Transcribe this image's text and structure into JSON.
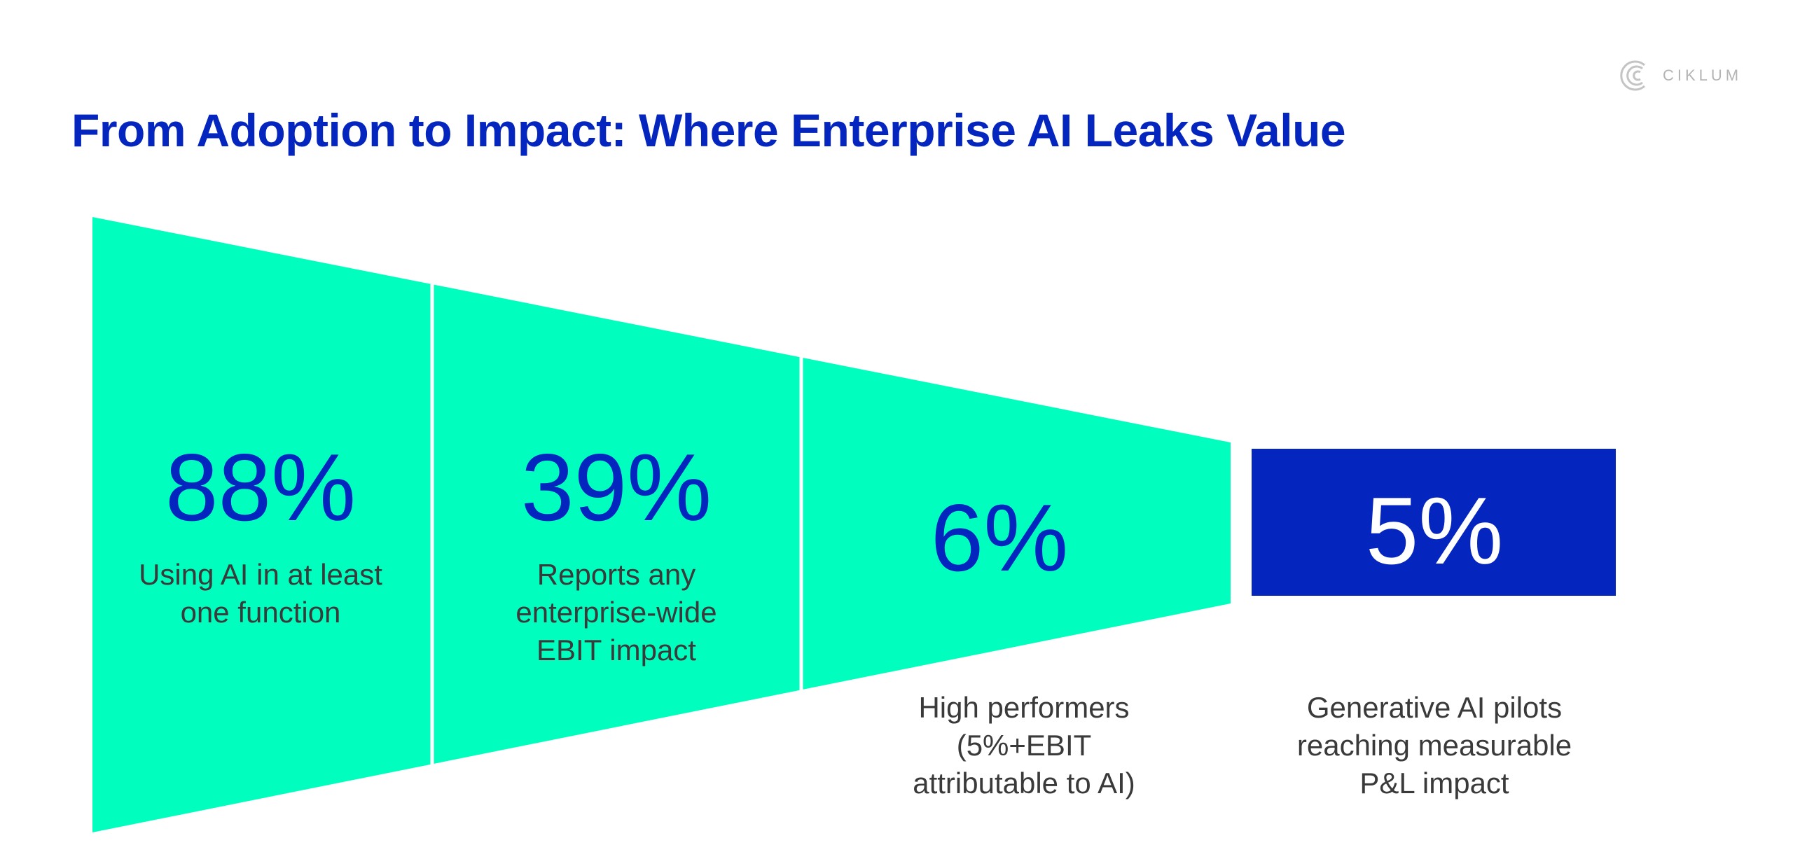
{
  "title": "From Adoption to Impact: Where Enterprise AI Leaks Value",
  "brand": {
    "name": "CIKLUM",
    "icon": "ciklum-logo-icon"
  },
  "colors": {
    "title": "#0525bf",
    "funnel": "#00ffbe",
    "highlight": "#0525bf",
    "divider": "#ffffff",
    "label": "#3a3a3a",
    "logo": "#b4b4b4"
  },
  "stages": [
    {
      "value": "88%",
      "label_lines": [
        "Using AI in at least",
        "one function"
      ]
    },
    {
      "value": "39%",
      "label_lines": [
        "Reports any",
        "enterprise-wide",
        "EBIT impact"
      ]
    },
    {
      "value": "6%",
      "label_lines": [
        "High performers",
        "(5%+EBIT",
        "attributable to AI)"
      ]
    }
  ],
  "highlight": {
    "value": "5%",
    "label_lines": [
      "Generative AI pilots",
      "reaching measurable",
      "P&L impact"
    ]
  }
}
